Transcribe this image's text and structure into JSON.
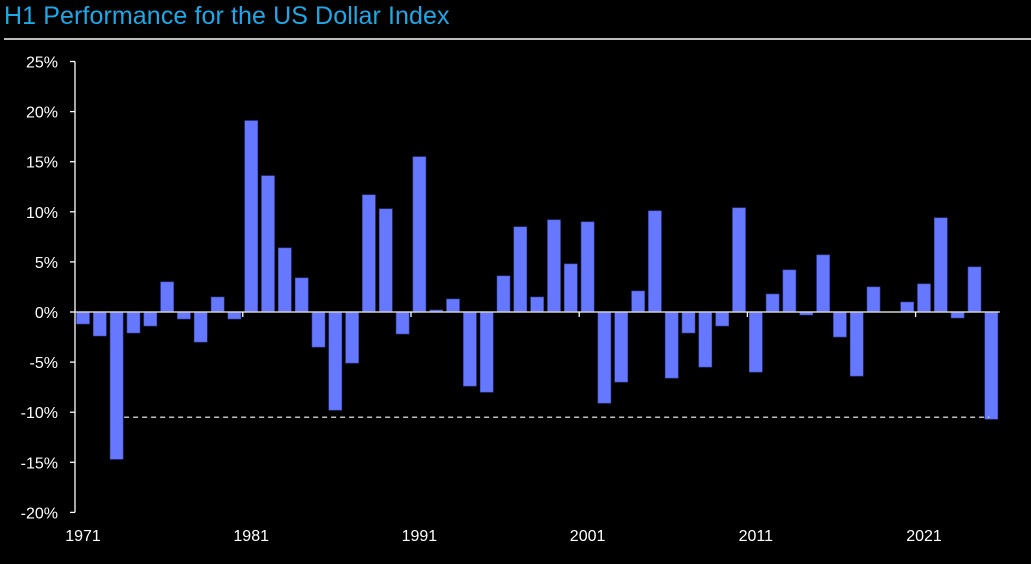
{
  "chart_data": {
    "type": "bar",
    "title": "H1 Performance for the US Dollar Index",
    "xlabel": "",
    "ylabel": "",
    "ylim": [
      -20,
      25
    ],
    "yticks": [
      25,
      20,
      15,
      10,
      5,
      0,
      -5,
      -10,
      -15,
      -20
    ],
    "ytick_labels": [
      "25%",
      "20%",
      "15%",
      "10%",
      "5%",
      "0%",
      "-5%",
      "-10%",
      "-15%",
      "-20%"
    ],
    "xtick_labels": [
      "1971",
      "1981",
      "1991",
      "2001",
      "2011",
      "2021"
    ],
    "grid": false,
    "legend": "none",
    "bar_color": "#6678ff",
    "title_color": "#1fa8e8",
    "categories": [
      "1971",
      "1972",
      "1973",
      "1974",
      "1975",
      "1976",
      "1977",
      "1978",
      "1979",
      "1980",
      "1981",
      "1982",
      "1983",
      "1984",
      "1985",
      "1986",
      "1987",
      "1988",
      "1989",
      "1990",
      "1991",
      "1992",
      "1993",
      "1994",
      "1995",
      "1996",
      "1997",
      "1998",
      "1999",
      "2000",
      "2001",
      "2002",
      "2003",
      "2004",
      "2005",
      "2006",
      "2007",
      "2008",
      "2009",
      "2010",
      "2011",
      "2012",
      "2013",
      "2014",
      "2015",
      "2016",
      "2017",
      "2018",
      "2019",
      "2020",
      "2021",
      "2022",
      "2023",
      "2024",
      "2025"
    ],
    "values": [
      -1.2,
      -2.4,
      -14.7,
      -2.1,
      -1.4,
      3.0,
      -0.7,
      -3.0,
      1.5,
      -0.7,
      19.1,
      13.6,
      6.4,
      3.4,
      -3.5,
      -9.8,
      -5.1,
      11.7,
      10.3,
      -2.2,
      15.5,
      0.2,
      1.3,
      -7.4,
      -8.0,
      3.6,
      8.5,
      1.5,
      9.2,
      4.8,
      9.0,
      -9.1,
      -7.0,
      2.1,
      10.1,
      -6.6,
      -2.1,
      -5.5,
      -1.4,
      10.4,
      -6.0,
      1.8,
      4.2,
      -0.3,
      5.7,
      -2.5,
      -6.4,
      2.5,
      0.0,
      1.0,
      2.8,
      9.4,
      -0.6,
      4.5,
      -10.7
    ],
    "reference_line": {
      "value": -10.5,
      "style": "dashed",
      "from": "1973",
      "to": "2025"
    }
  }
}
